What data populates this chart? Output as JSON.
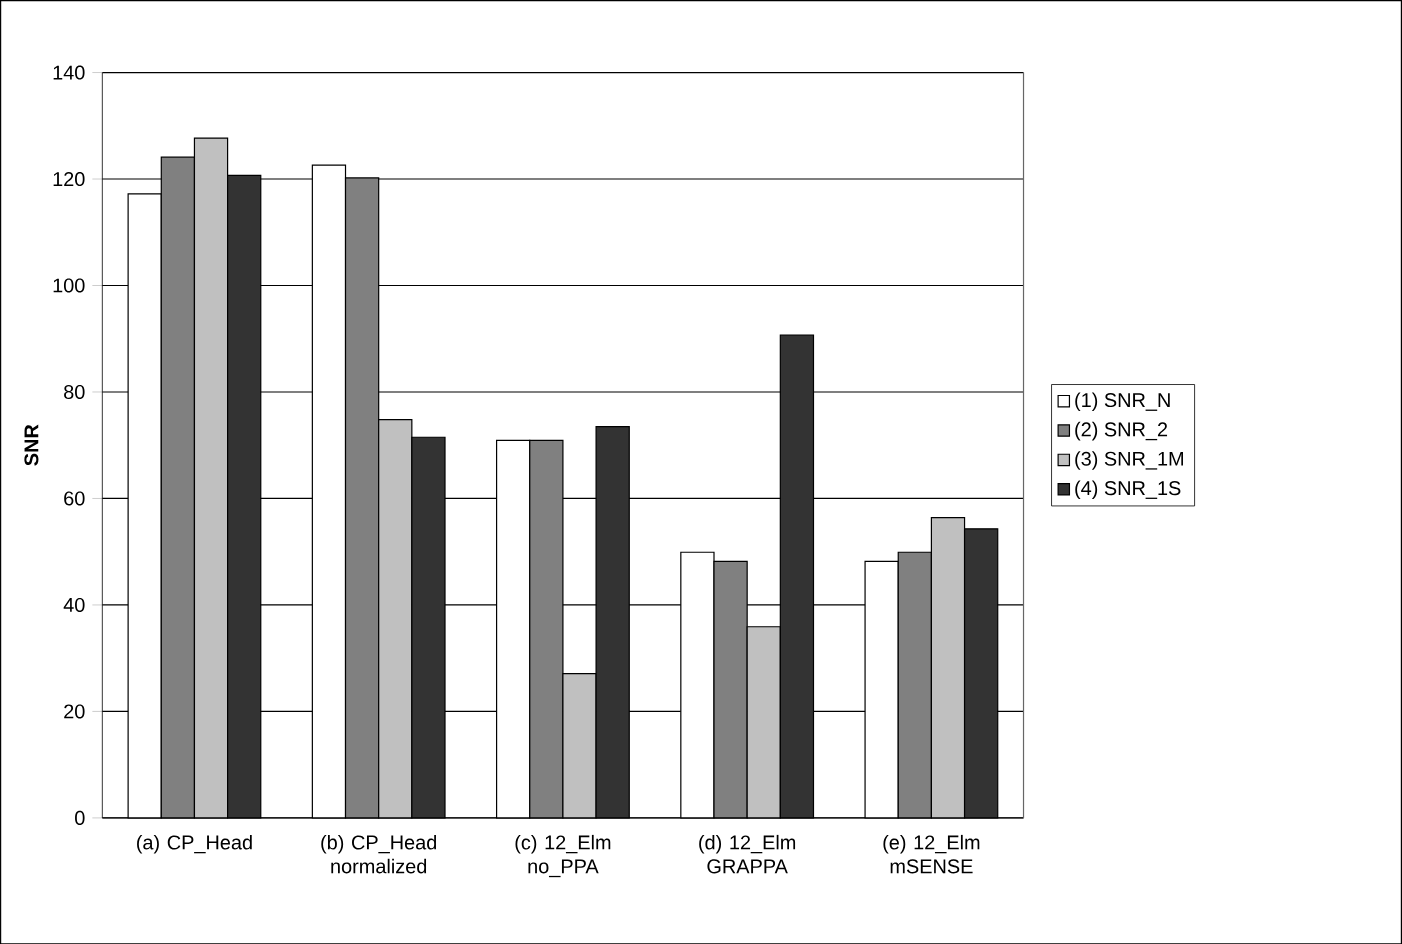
{
  "chart_data": {
    "type": "bar",
    "ylabel": "SNR",
    "categories": [
      "(a) CP_Head",
      "(b) CP_Head normalized",
      "(c) 12_Elm no_PPA",
      "(d) 12_Elm GRAPPA",
      "(e) 12_Elm mSENSE"
    ],
    "series": [
      {
        "name": "(1) SNR_N",
        "color": "#ffffff",
        "values": [
          117.2,
          122.6,
          70.9,
          49.9,
          48.2
        ]
      },
      {
        "name": "(2) SNR_2",
        "color": "#808080",
        "values": [
          124.1,
          120.2,
          70.9,
          48.2,
          49.9
        ]
      },
      {
        "name": "(3) SNR_1M",
        "color": "#c0c0c0",
        "values": [
          127.7,
          74.8,
          27.1,
          35.9,
          56.4
        ]
      },
      {
        "name": "(4) SNR_1S",
        "color": "#333333",
        "values": [
          120.7,
          71.5,
          73.5,
          90.7,
          54.3
        ]
      }
    ],
    "ylim": [
      0,
      140
    ],
    "yticks": [
      0,
      20,
      40,
      60,
      80,
      100,
      120,
      140
    ],
    "grid": "y",
    "legend": "right"
  }
}
